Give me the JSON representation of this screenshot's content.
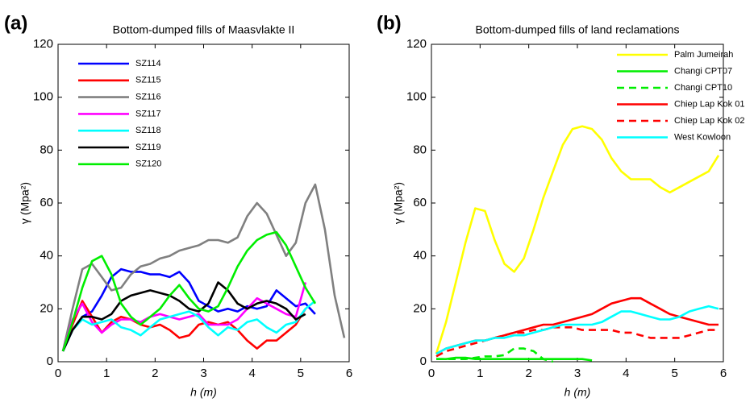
{
  "chart_data": [
    {
      "type": "line",
      "panel_label": "(a)",
      "title": "Bottom-dumped fills of Maasvlakte II",
      "xlabel": "h (m)",
      "ylabel": "γ (Mpa²)",
      "xlim": [
        0,
        6
      ],
      "ylim": [
        0,
        120
      ],
      "xticks": [
        0,
        1,
        2,
        3,
        4,
        5,
        6
      ],
      "yticks": [
        0,
        20,
        40,
        60,
        80,
        100,
        120
      ],
      "legend": "upper left",
      "x": [
        0.1,
        0.3,
        0.5,
        0.7,
        0.9,
        1.1,
        1.3,
        1.5,
        1.7,
        1.9,
        2.1,
        2.3,
        2.5,
        2.7,
        2.9,
        3.1,
        3.3,
        3.5,
        3.7,
        3.9,
        4.1,
        4.3,
        4.5,
        4.7,
        4.9,
        5.1,
        5.3,
        5.5,
        5.7,
        5.9
      ],
      "series": [
        {
          "name": "SZ114",
          "color": "#0000ff",
          "dashed": false,
          "values": [
            4,
            12,
            17,
            19,
            25,
            32,
            35,
            34,
            34,
            33,
            33,
            32,
            34,
            30,
            23,
            21,
            19,
            20,
            19,
            21,
            20,
            21,
            27,
            24,
            21,
            22,
            18,
            null,
            null,
            null
          ]
        },
        {
          "name": "SZ115",
          "color": "#ff0000",
          "dashed": false,
          "values": [
            4,
            14,
            23,
            17,
            11,
            15,
            17,
            16,
            14,
            13,
            14,
            12,
            9,
            10,
            14,
            15,
            14,
            15,
            12,
            8,
            5,
            8,
            8,
            11,
            14,
            20,
            null,
            null,
            null,
            null
          ]
        },
        {
          "name": "SZ116",
          "color": "#808080",
          "dashed": false,
          "values": [
            4,
            20,
            35,
            37,
            32,
            27,
            28,
            33,
            36,
            37,
            39,
            40,
            42,
            43,
            44,
            46,
            46,
            45,
            47,
            55,
            60,
            56,
            48,
            40,
            45,
            60,
            67,
            50,
            25,
            9
          ]
        },
        {
          "name": "SZ117",
          "color": "#ff00ff",
          "dashed": false,
          "values": [
            4,
            16,
            22,
            15,
            11,
            14,
            16,
            16,
            15,
            17,
            18,
            17,
            16,
            17,
            18,
            14,
            14,
            14,
            16,
            20,
            24,
            22,
            20,
            18,
            17,
            30,
            null,
            null,
            null,
            null
          ]
        },
        {
          "name": "SZ118",
          "color": "#00ffff",
          "dashed": false,
          "values": [
            4,
            12,
            16,
            14,
            15,
            16,
            13,
            12,
            10,
            13,
            16,
            17,
            18,
            19,
            17,
            13,
            10,
            13,
            12,
            15,
            16,
            13,
            11,
            14,
            15,
            20,
            23,
            null,
            null,
            null
          ]
        },
        {
          "name": "SZ119",
          "color": "#000000",
          "dashed": false,
          "values": [
            4,
            12,
            17,
            17,
            16,
            18,
            23,
            25,
            26,
            27,
            26,
            25,
            23,
            20,
            19,
            22,
            30,
            27,
            22,
            20,
            22,
            23,
            22,
            20,
            16,
            18,
            null,
            null,
            null,
            null
          ]
        },
        {
          "name": "SZ120",
          "color": "#00ee00",
          "dashed": false,
          "values": [
            4,
            15,
            28,
            38,
            40,
            33,
            22,
            17,
            14,
            17,
            20,
            25,
            29,
            24,
            20,
            19,
            21,
            28,
            36,
            42,
            46,
            48,
            49,
            44,
            36,
            28,
            22,
            null,
            null,
            null
          ]
        }
      ]
    },
    {
      "type": "line",
      "panel_label": "(b)",
      "title": "Bottom-dumped fills of land reclamations",
      "xlabel": "h (m)",
      "ylabel": "γ (Mpa²)",
      "xlim": [
        0,
        6
      ],
      "ylim": [
        0,
        120
      ],
      "xticks": [
        0,
        1,
        2,
        3,
        4,
        5,
        6
      ],
      "yticks": [
        0,
        20,
        40,
        60,
        80,
        100,
        120
      ],
      "legend": "upper right",
      "x": [
        0.1,
        0.3,
        0.5,
        0.7,
        0.9,
        1.1,
        1.3,
        1.5,
        1.7,
        1.9,
        2.1,
        2.3,
        2.5,
        2.7,
        2.9,
        3.1,
        3.3,
        3.5,
        3.7,
        3.9,
        4.1,
        4.3,
        4.5,
        4.7,
        4.9,
        5.1,
        5.3,
        5.5,
        5.7,
        5.9
      ],
      "series": [
        {
          "name": "Palm Jumeirah",
          "color": "#ffff00",
          "dashed": false,
          "values": [
            3,
            15,
            30,
            45,
            58,
            57,
            46,
            37,
            34,
            39,
            50,
            62,
            72,
            82,
            88,
            89,
            88,
            84,
            77,
            72,
            69,
            69,
            69,
            66,
            64,
            66,
            68,
            70,
            72,
            78
          ]
        },
        {
          "name": "Changi CPT07",
          "color": "#00ee00",
          "dashed": false,
          "values": [
            1,
            1,
            1.5,
            1.5,
            1,
            1,
            1,
            1,
            1,
            1,
            1,
            1,
            1,
            1,
            1,
            1,
            0.5,
            null,
            null,
            null,
            null,
            null,
            null,
            null,
            null,
            null,
            null,
            null,
            null,
            null
          ]
        },
        {
          "name": "Changi CPT10",
          "color": "#00ee00",
          "dashed": true,
          "values": [
            1,
            1,
            1,
            1,
            1.5,
            2,
            2,
            2.5,
            5,
            5,
            4,
            1,
            0,
            null,
            null,
            null,
            null,
            null,
            null,
            null,
            null,
            null,
            null,
            null,
            null,
            null,
            null,
            null,
            null,
            null
          ]
        },
        {
          "name": "Chiep Lap Kok 01",
          "color": "#ff0000",
          "dashed": false,
          "values": [
            3,
            5,
            6,
            7,
            8,
            8,
            9,
            10,
            11,
            12,
            13,
            14,
            14,
            15,
            16,
            17,
            18,
            20,
            22,
            23,
            24,
            24,
            22,
            20,
            18,
            17,
            16,
            15,
            14,
            14
          ]
        },
        {
          "name": "Chiep Lap Kok 02",
          "color": "#ff0000",
          "dashed": true,
          "values": [
            2,
            4,
            5,
            6,
            7,
            8,
            9,
            10,
            11,
            11,
            12,
            12,
            13,
            13,
            13,
            12,
            12,
            12,
            12,
            11,
            11,
            10,
            9,
            9,
            9,
            9,
            10,
            11,
            12,
            12
          ]
        },
        {
          "name": "West Kowloon",
          "color": "#00ffff",
          "dashed": false,
          "values": [
            3,
            5,
            6,
            7,
            8,
            8,
            9,
            9,
            10,
            10,
            11,
            12,
            13,
            14,
            14,
            14,
            14,
            15,
            17,
            19,
            19,
            18,
            17,
            16,
            16,
            17,
            19,
            20,
            21,
            20
          ]
        }
      ]
    }
  ]
}
